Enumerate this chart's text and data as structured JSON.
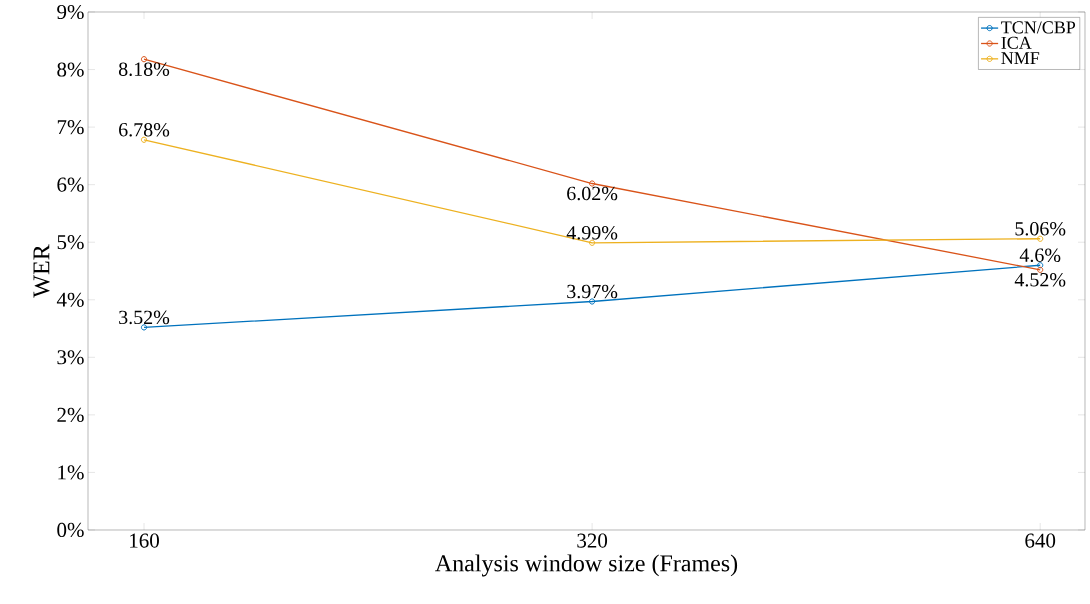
{
  "chart_data": {
    "type": "line",
    "xlabel": "Analysis window size (Frames)",
    "ylabel": "WER",
    "categories": [
      "160",
      "320",
      "640"
    ],
    "series": [
      {
        "name": "TCN/CBP",
        "color": "#0072bd",
        "values": [
          3.52,
          3.97,
          4.6
        ],
        "value_labels": [
          "3.52%",
          "3.97%",
          "4.6%"
        ]
      },
      {
        "name": "ICA",
        "color": "#d95319",
        "values": [
          8.18,
          6.02,
          4.52
        ],
        "value_labels": [
          "8.18%",
          "6.02%",
          "4.52%"
        ]
      },
      {
        "name": "NMF",
        "color": "#edb120",
        "values": [
          6.78,
          4.99,
          5.06
        ],
        "value_labels": [
          "6.78%",
          "4.99%",
          "5.06%"
        ]
      }
    ],
    "ylim": [
      0,
      9
    ],
    "yticks": [
      {
        "value": 0,
        "label": "0%"
      },
      {
        "value": 1,
        "label": "1%"
      },
      {
        "value": 2,
        "label": "2%"
      },
      {
        "value": 3,
        "label": "3%"
      },
      {
        "value": 4,
        "label": "4%"
      },
      {
        "value": 5,
        "label": "5%"
      },
      {
        "value": 6,
        "label": "6%"
      },
      {
        "value": 7,
        "label": "7%"
      },
      {
        "value": 8,
        "label": "8%"
      },
      {
        "value": 9,
        "label": "9%"
      }
    ],
    "grid": false,
    "legend": "top right",
    "marker": "circle",
    "line_style": "solid"
  }
}
